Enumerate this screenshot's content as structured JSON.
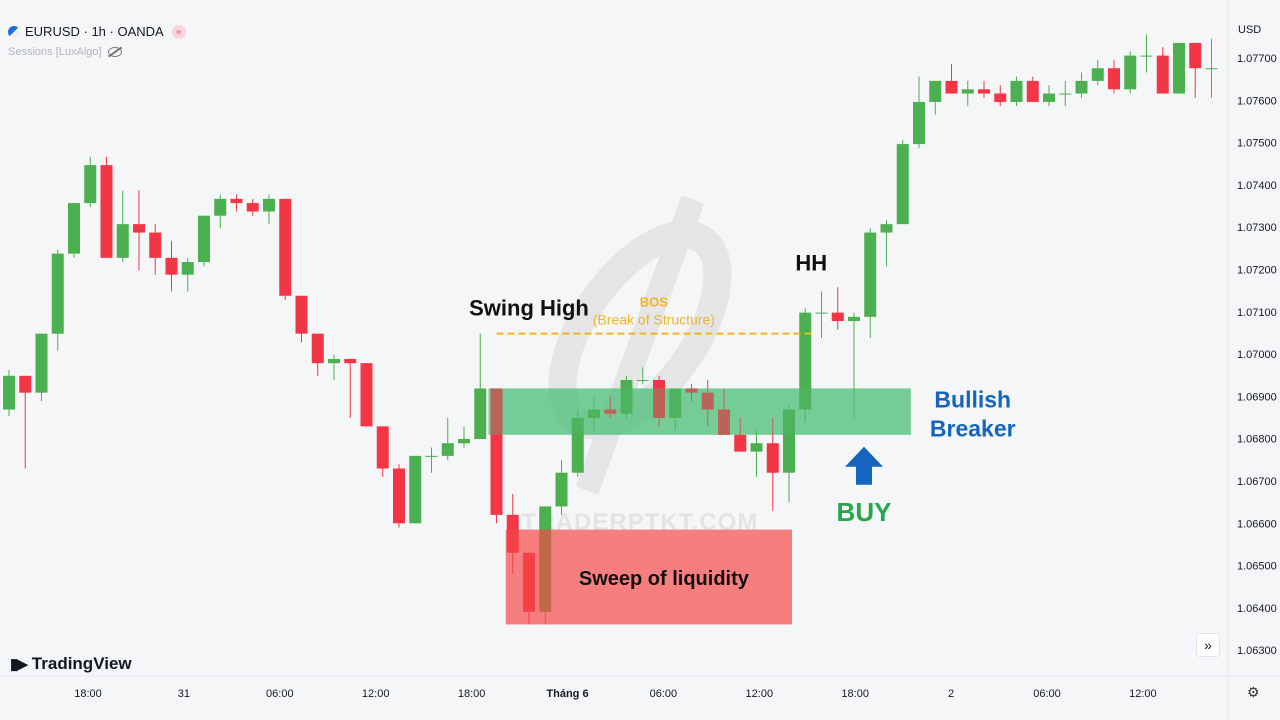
{
  "header": {
    "symbol": "EURUSD · 1h · OANDA",
    "indicator": "Sessions [LuxAlgo]",
    "currency": "USD"
  },
  "footer": {
    "brand": "TradingView",
    "forward_icon": "»",
    "settings_icon": "⚙"
  },
  "chart_data": {
    "type": "candlestick",
    "y_range": [
      1.063,
      1.078
    ],
    "y_ticks": [
      "1.07700",
      "1.07600",
      "1.07500",
      "1.07400",
      "1.07300",
      "1.07200",
      "1.07100",
      "1.07000",
      "1.06900",
      "1.06800",
      "1.06700",
      "1.06600",
      "1.06500",
      "1.06400",
      "1.06300"
    ],
    "x_ticks": [
      "18:00",
      "31",
      "06:00",
      "12:00",
      "18:00",
      "Tháng 6",
      "06:00",
      "12:00",
      "18:00",
      "2",
      "06:00",
      "12:00"
    ],
    "candles": [
      {
        "o": 1.06866,
        "h": 1.0696,
        "l": 1.0685,
        "c": 1.06946
      },
      {
        "o": 1.06946,
        "h": 1.06946,
        "l": 1.06726,
        "c": 1.06906
      },
      {
        "o": 1.06906,
        "h": 1.07046,
        "l": 1.06886,
        "c": 1.07046
      },
      {
        "o": 1.07046,
        "h": 1.07246,
        "l": 1.07006,
        "c": 1.07236
      },
      {
        "o": 1.07236,
        "h": 1.07356,
        "l": 1.07226,
        "c": 1.07356
      },
      {
        "o": 1.07356,
        "h": 1.07466,
        "l": 1.07346,
        "c": 1.07446
      },
      {
        "o": 1.07446,
        "h": 1.07466,
        "l": 1.07236,
        "c": 1.07226
      },
      {
        "o": 1.07226,
        "h": 1.07386,
        "l": 1.07216,
        "c": 1.07306
      },
      {
        "o": 1.07306,
        "h": 1.07386,
        "l": 1.07196,
        "c": 1.07286
      },
      {
        "o": 1.07286,
        "h": 1.07306,
        "l": 1.07186,
        "c": 1.07226
      },
      {
        "o": 1.07226,
        "h": 1.07266,
        "l": 1.07146,
        "c": 1.07186
      },
      {
        "o": 1.07186,
        "h": 1.07226,
        "l": 1.07146,
        "c": 1.07216
      },
      {
        "o": 1.07216,
        "h": 1.07326,
        "l": 1.07206,
        "c": 1.07326
      },
      {
        "o": 1.07326,
        "h": 1.07376,
        "l": 1.07296,
        "c": 1.07366
      },
      {
        "o": 1.07366,
        "h": 1.07376,
        "l": 1.07336,
        "c": 1.07356
      },
      {
        "o": 1.07356,
        "h": 1.07366,
        "l": 1.07326,
        "c": 1.07336
      },
      {
        "o": 1.07336,
        "h": 1.07376,
        "l": 1.07306,
        "c": 1.07366
      },
      {
        "o": 1.07366,
        "h": 1.07366,
        "l": 1.07126,
        "c": 1.07136
      },
      {
        "o": 1.07136,
        "h": 1.07136,
        "l": 1.07026,
        "c": 1.07046
      },
      {
        "o": 1.07046,
        "h": 1.07046,
        "l": 1.06946,
        "c": 1.06976
      },
      {
        "o": 1.06976,
        "h": 1.06996,
        "l": 1.06936,
        "c": 1.06986
      },
      {
        "o": 1.06986,
        "h": 1.06986,
        "l": 1.06846,
        "c": 1.06976
      },
      {
        "o": 1.06976,
        "h": 1.06976,
        "l": 1.06826,
        "c": 1.06826
      },
      {
        "o": 1.06826,
        "h": 1.06826,
        "l": 1.06706,
        "c": 1.06726
      },
      {
        "o": 1.06726,
        "h": 1.06736,
        "l": 1.06586,
        "c": 1.06596
      },
      {
        "o": 1.06596,
        "h": 1.06756,
        "l": 1.06596,
        "c": 1.06756
      },
      {
        "o": 1.06756,
        "h": 1.06776,
        "l": 1.06716,
        "c": 1.06756
      },
      {
        "o": 1.06756,
        "h": 1.06846,
        "l": 1.06746,
        "c": 1.06786
      },
      {
        "o": 1.06786,
        "h": 1.06826,
        "l": 1.06776,
        "c": 1.06796
      },
      {
        "o": 1.06796,
        "h": 1.07046,
        "l": 1.06796,
        "c": 1.06916
      },
      {
        "o": 1.06916,
        "h": 1.06916,
        "l": 1.06596,
        "c": 1.06616
      },
      {
        "o": 1.06616,
        "h": 1.06666,
        "l": 1.06476,
        "c": 1.06526
      },
      {
        "o": 1.06526,
        "h": 1.06526,
        "l": 1.06356,
        "c": 1.06386
      },
      {
        "o": 1.06386,
        "h": 1.06636,
        "l": 1.06356,
        "c": 1.06636
      },
      {
        "o": 1.06636,
        "h": 1.06746,
        "l": 1.06616,
        "c": 1.06716
      },
      {
        "o": 1.06716,
        "h": 1.06866,
        "l": 1.06706,
        "c": 1.06846
      },
      {
        "o": 1.06846,
        "h": 1.06896,
        "l": 1.06816,
        "c": 1.06866
      },
      {
        "o": 1.06866,
        "h": 1.06896,
        "l": 1.06846,
        "c": 1.06856
      },
      {
        "o": 1.06856,
        "h": 1.06946,
        "l": 1.06846,
        "c": 1.06936
      },
      {
        "o": 1.06936,
        "h": 1.06966,
        "l": 1.06926,
        "c": 1.06936
      },
      {
        "o": 1.06936,
        "h": 1.06946,
        "l": 1.06826,
        "c": 1.06846
      },
      {
        "o": 1.06846,
        "h": 1.06916,
        "l": 1.06816,
        "c": 1.06916
      },
      {
        "o": 1.06916,
        "h": 1.06926,
        "l": 1.06886,
        "c": 1.06906
      },
      {
        "o": 1.06906,
        "h": 1.06936,
        "l": 1.06826,
        "c": 1.06866
      },
      {
        "o": 1.06866,
        "h": 1.06916,
        "l": 1.06806,
        "c": 1.06806
      },
      {
        "o": 1.06806,
        "h": 1.06846,
        "l": 1.06766,
        "c": 1.06766
      },
      {
        "o": 1.06766,
        "h": 1.06816,
        "l": 1.06706,
        "c": 1.06786
      },
      {
        "o": 1.06786,
        "h": 1.06846,
        "l": 1.06626,
        "c": 1.06716
      },
      {
        "o": 1.06716,
        "h": 1.06876,
        "l": 1.06646,
        "c": 1.06866
      },
      {
        "o": 1.06866,
        "h": 1.07106,
        "l": 1.06836,
        "c": 1.07096
      },
      {
        "o": 1.07096,
        "h": 1.07146,
        "l": 1.07036,
        "c": 1.07096
      },
      {
        "o": 1.07096,
        "h": 1.07156,
        "l": 1.07056,
        "c": 1.07076
      },
      {
        "o": 1.07076,
        "h": 1.07096,
        "l": 1.06846,
        "c": 1.07086
      },
      {
        "o": 1.07086,
        "h": 1.07296,
        "l": 1.07036,
        "c": 1.07286
      },
      {
        "o": 1.07286,
        "h": 1.07316,
        "l": 1.07206,
        "c": 1.07306
      },
      {
        "o": 1.07306,
        "h": 1.07506,
        "l": 1.07306,
        "c": 1.07496
      },
      {
        "o": 1.07496,
        "h": 1.07656,
        "l": 1.07486,
        "c": 1.07596
      },
      {
        "o": 1.07596,
        "h": 1.07646,
        "l": 1.07566,
        "c": 1.07646
      },
      {
        "o": 1.07646,
        "h": 1.07686,
        "l": 1.07616,
        "c": 1.07616
      },
      {
        "o": 1.07616,
        "h": 1.07646,
        "l": 1.07586,
        "c": 1.07626
      },
      {
        "o": 1.07626,
        "h": 1.07646,
        "l": 1.07606,
        "c": 1.07616
      },
      {
        "o": 1.07616,
        "h": 1.07636,
        "l": 1.07586,
        "c": 1.07596
      },
      {
        "o": 1.07596,
        "h": 1.07656,
        "l": 1.07586,
        "c": 1.07646
      },
      {
        "o": 1.07646,
        "h": 1.07656,
        "l": 1.07596,
        "c": 1.07596
      },
      {
        "o": 1.07596,
        "h": 1.07636,
        "l": 1.07586,
        "c": 1.07616
      },
      {
        "o": 1.07616,
        "h": 1.07646,
        "l": 1.07586,
        "c": 1.07616
      },
      {
        "o": 1.07616,
        "h": 1.07666,
        "l": 1.07606,
        "c": 1.07646
      },
      {
        "o": 1.07646,
        "h": 1.07696,
        "l": 1.07636,
        "c": 1.07676
      },
      {
        "o": 1.07676,
        "h": 1.07696,
        "l": 1.07616,
        "c": 1.07626
      },
      {
        "o": 1.07626,
        "h": 1.07716,
        "l": 1.07616,
        "c": 1.07706
      },
      {
        "o": 1.07706,
        "h": 1.07756,
        "l": 1.07666,
        "c": 1.07706
      },
      {
        "o": 1.07706,
        "h": 1.07726,
        "l": 1.07616,
        "c": 1.07616
      },
      {
        "o": 1.07616,
        "h": 1.07736,
        "l": 1.07616,
        "c": 1.07736
      },
      {
        "o": 1.07736,
        "h": 1.07736,
        "l": 1.07606,
        "c": 1.07676
      },
      {
        "o": 1.07676,
        "h": 1.07746,
        "l": 1.07606,
        "c": 1.07676
      }
    ],
    "colors": {
      "up": "#4caf50",
      "down": "#f23645",
      "bos": "#f0b429",
      "breaker": "rgba(76,190,120,0.62)",
      "sweep": "rgba(246,70,70,0.68)",
      "arrow": "#1565c0",
      "breaker_text": "#1565c0",
      "buy_text": "#22a84a"
    },
    "annotations": {
      "swing_high": "Swing High",
      "bos": "BOS",
      "bos_sub": "(Break of Structure)",
      "bos_level": 1.07046,
      "hh": "HH",
      "breaker_line1": "Bullish",
      "breaker_line2": "Breaker",
      "breaker_zone": [
        1.06806,
        1.06916
      ],
      "sweep": "Sweep of liquidity",
      "sweep_zone": [
        1.06356,
        1.06581
      ],
      "buy": "BUY",
      "watermark": "TRADERPTKT.COM"
    }
  }
}
